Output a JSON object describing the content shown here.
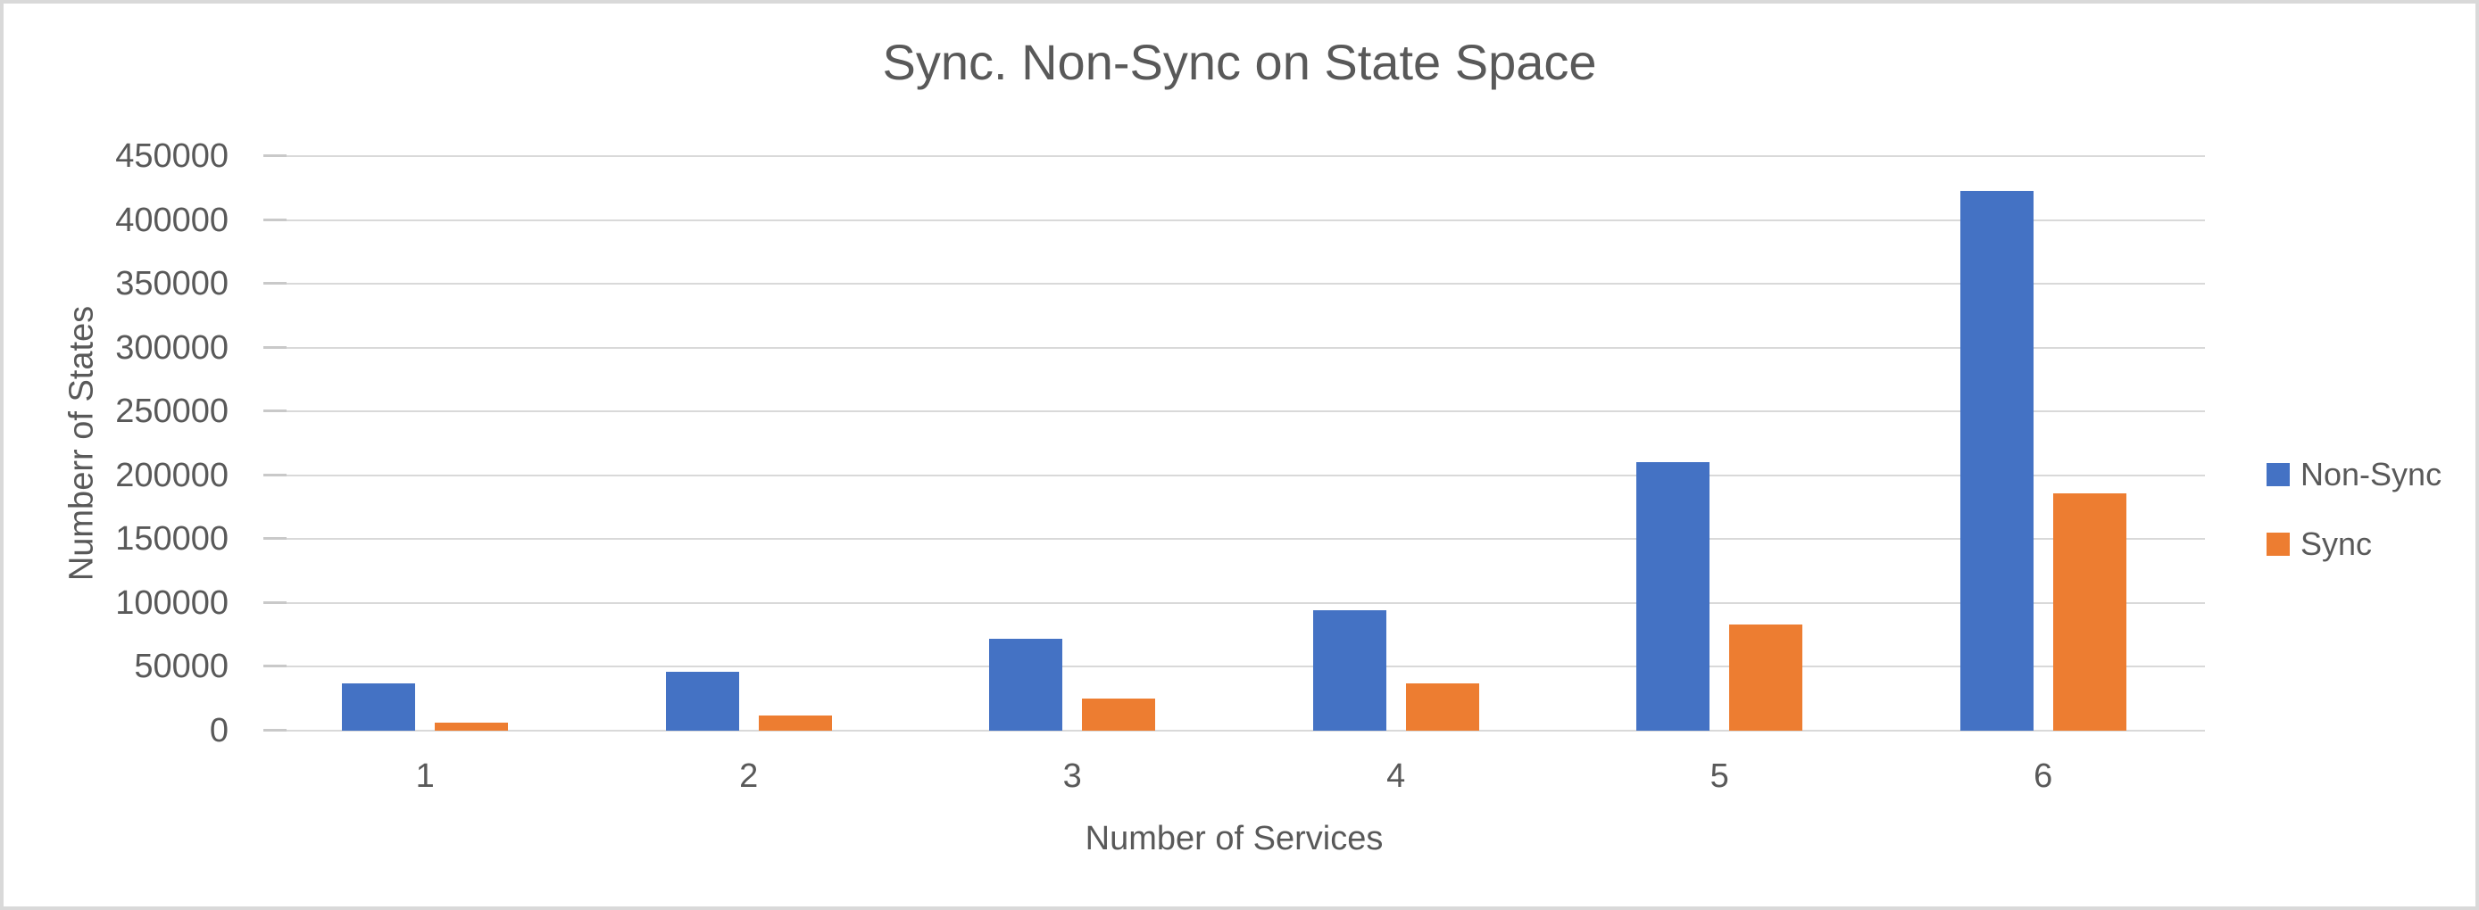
{
  "window": {
    "background_color": "#ffffff",
    "border_color": "#d9d9d9"
  },
  "chart_data": {
    "type": "bar",
    "title": "Sync. Non-Sync on State Space",
    "xlabel": "Number of Services",
    "ylabel": "Numberr of States",
    "categories": [
      "1",
      "2",
      "3",
      "4",
      "5",
      "6"
    ],
    "series": [
      {
        "name": "Non-Sync",
        "color": "#4472C4",
        "values": [
          37000,
          46000,
          72000,
          94000,
          210000,
          423000
        ]
      },
      {
        "name": "Sync",
        "color": "#ED7D31",
        "values": [
          6000,
          12000,
          25000,
          37000,
          83000,
          186000
        ]
      }
    ],
    "ylim": [
      0,
      450000
    ],
    "ytick_step": 50000,
    "ytick_labels": [
      "0",
      "50000",
      "100000",
      "150000",
      "200000",
      "250000",
      "300000",
      "350000",
      "400000",
      "450000"
    ],
    "grid": "horizontal",
    "gridline_color": "#d9d9d9",
    "tick_mark_color": "#c9c9c9",
    "text_color": "#595959",
    "legend_position": "right"
  }
}
